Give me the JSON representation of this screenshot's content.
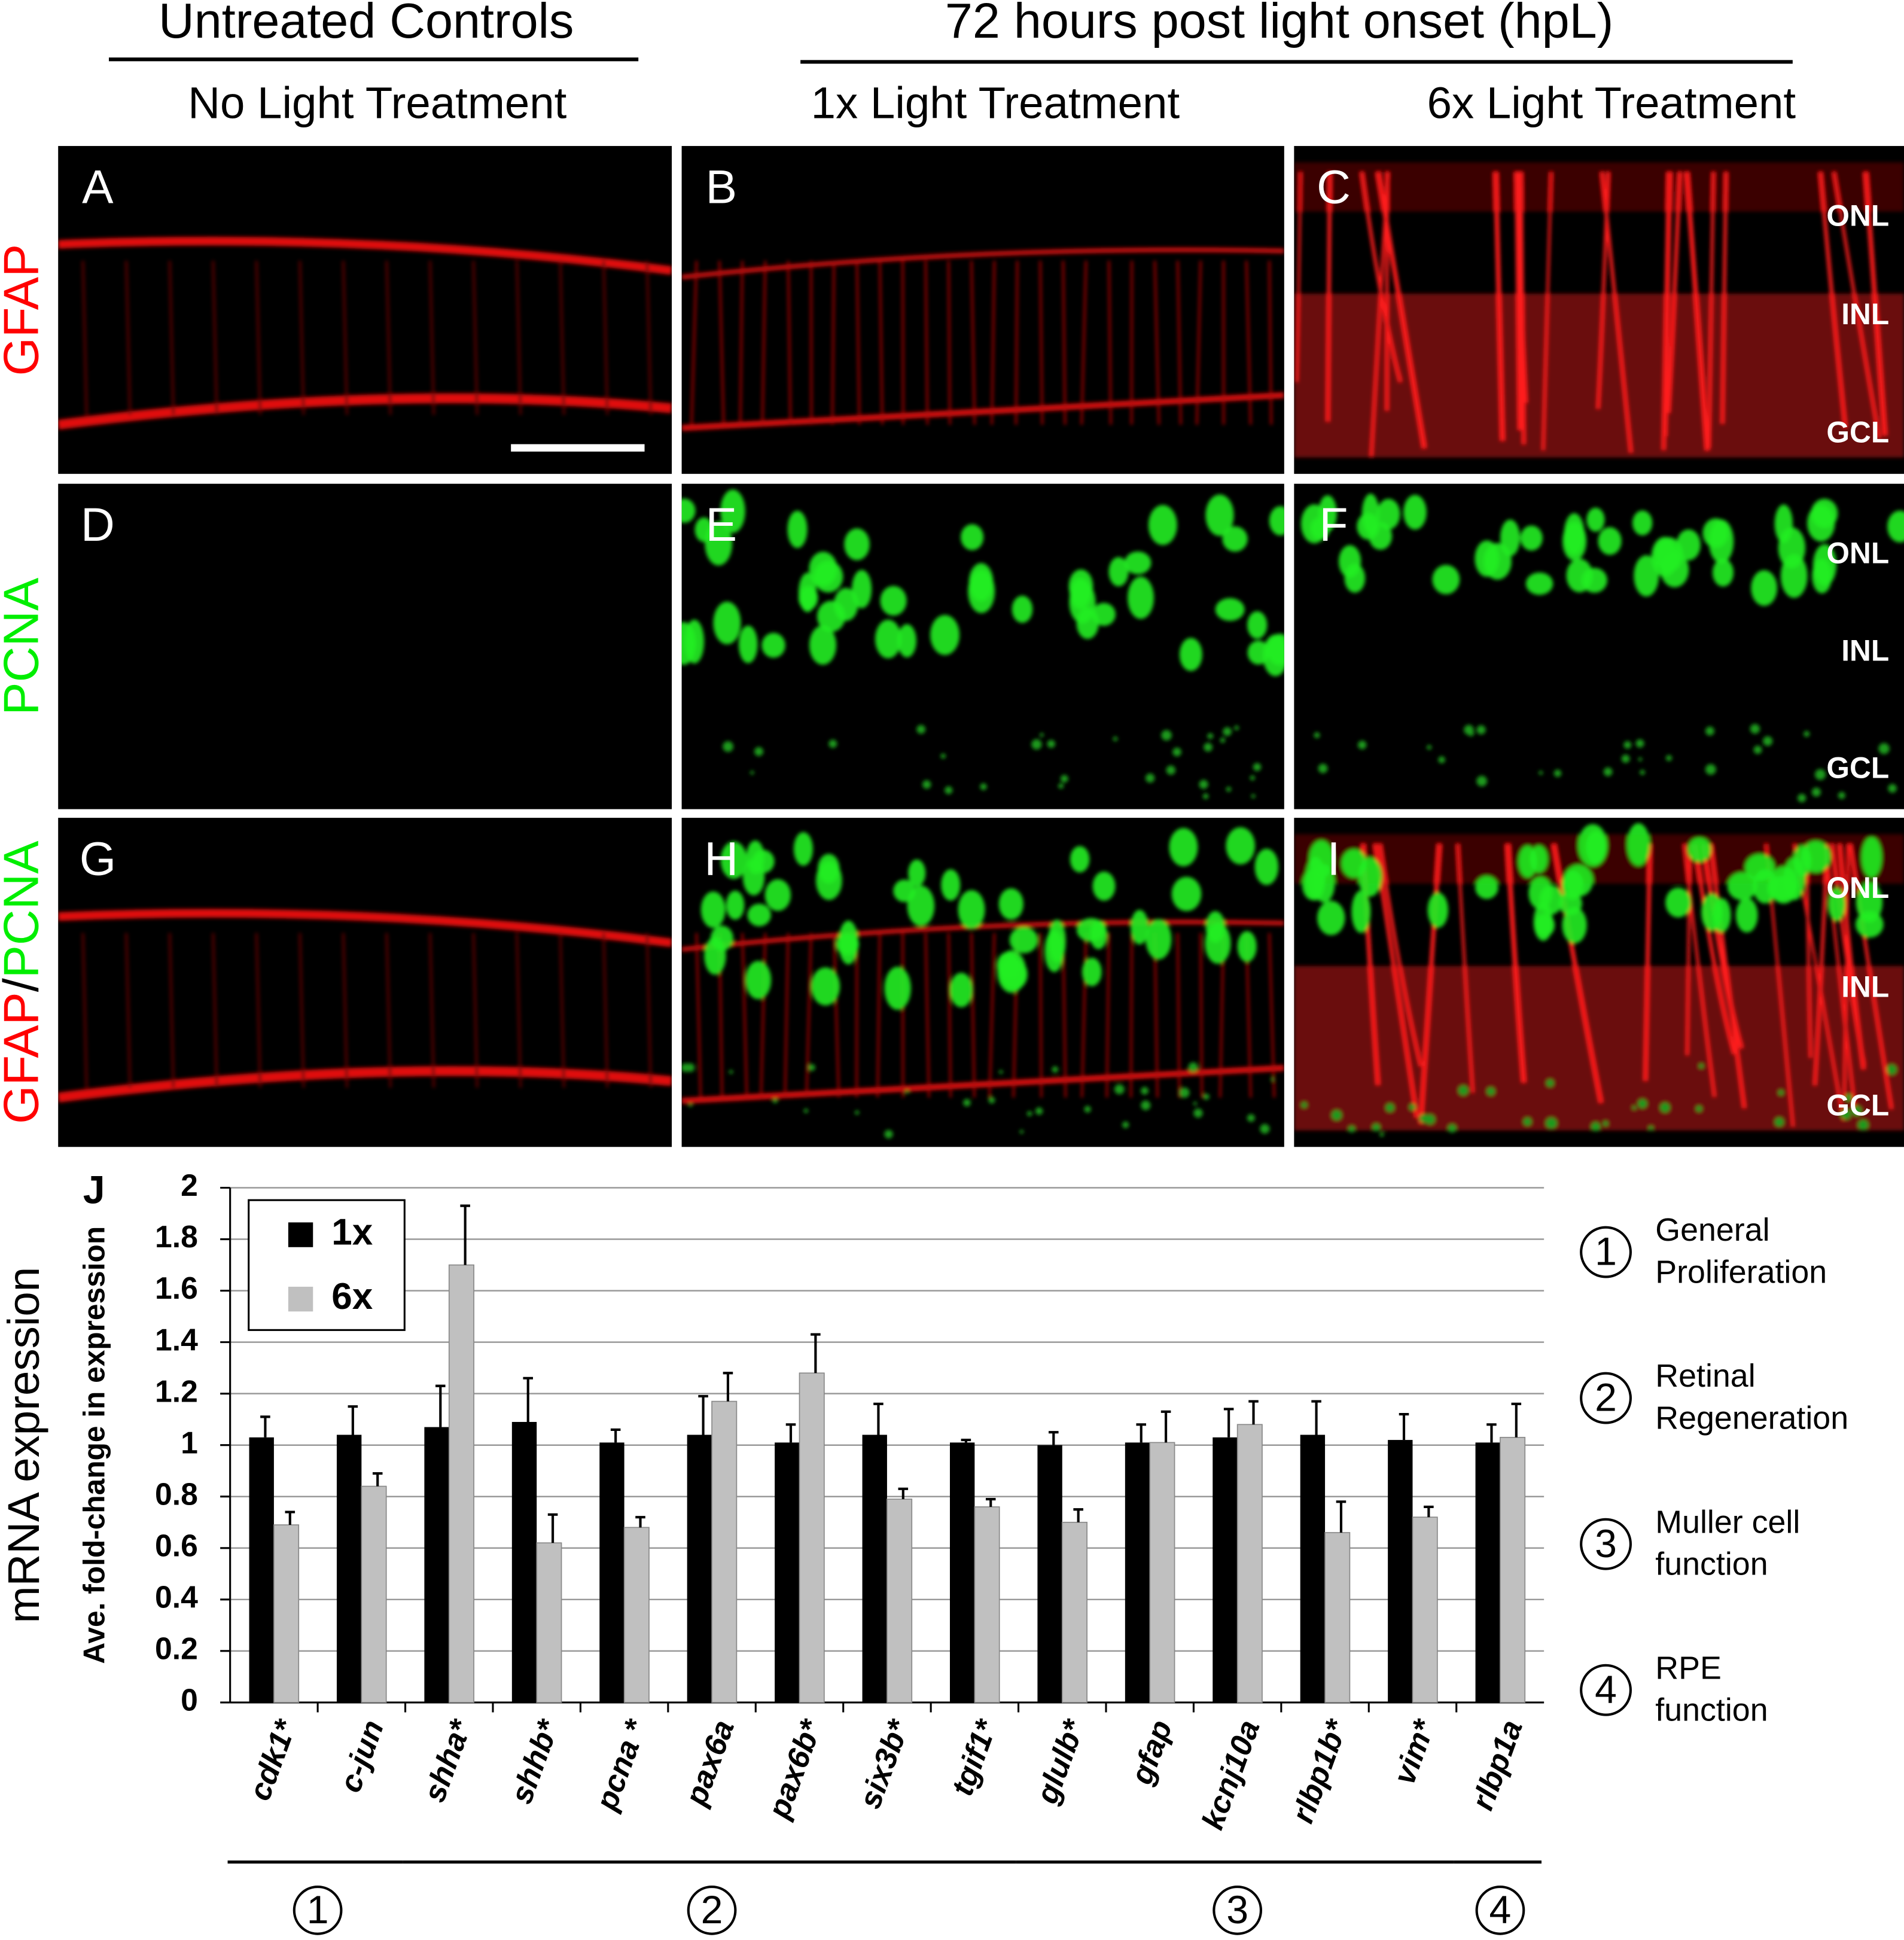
{
  "header": {
    "left_title": "Untreated Controls",
    "right_title": "72 hours post light onset (hpL)",
    "columns": [
      "No Light Treatment",
      "1x Light Treatment",
      "6x Light Treatment"
    ]
  },
  "rows": [
    {
      "label_parts": [
        "GFAP"
      ]
    },
    {
      "label_parts": [
        "PCNA"
      ]
    },
    {
      "label_parts": [
        "GFAP",
        "/",
        "PCNA"
      ]
    }
  ],
  "panels": [
    "A",
    "B",
    "C",
    "D",
    "E",
    "F",
    "G",
    "H",
    "I"
  ],
  "layers": [
    "ONL",
    "INL",
    "GCL"
  ],
  "chart_data": {
    "type": "bar",
    "panel_label": "J",
    "outer_label": "mRNA expression",
    "ylabel": "Ave. fold-change in expression",
    "categories": [
      "cdk1*",
      "c-jun",
      "shha*",
      "shhb*",
      "pcna *",
      "pax6a",
      "pax6b*",
      "six3b*",
      "tgif1*",
      "glulb*",
      "gfap",
      "kcnj10a",
      "rlbp1b*",
      "vim*",
      "rlbp1a"
    ],
    "series": [
      {
        "name": "1x",
        "color": "#000000",
        "values": [
          1.03,
          1.04,
          1.07,
          1.09,
          1.01,
          1.04,
          1.01,
          1.04,
          1.01,
          1.0,
          1.01,
          1.03,
          1.04,
          1.02,
          1.01
        ],
        "errors": [
          0.08,
          0.11,
          0.16,
          0.17,
          0.05,
          0.15,
          0.07,
          0.12,
          0.01,
          0.05,
          0.07,
          0.11,
          0.13,
          0.1,
          0.07
        ]
      },
      {
        "name": "6x",
        "color": "#c0c0c0",
        "values": [
          0.69,
          0.84,
          1.7,
          0.62,
          0.68,
          1.17,
          1.28,
          0.79,
          0.76,
          0.7,
          1.01,
          1.08,
          0.66,
          0.72,
          1.03
        ],
        "errors": [
          0.05,
          0.05,
          0.23,
          0.11,
          0.04,
          0.11,
          0.15,
          0.04,
          0.03,
          0.05,
          0.12,
          0.09,
          0.12,
          0.04,
          0.13
        ]
      }
    ],
    "ylim": [
      0,
      2
    ],
    "yticks": [
      0,
      0.2,
      0.4,
      0.6,
      0.8,
      1,
      1.2,
      1.4,
      1.6,
      1.8,
      2
    ],
    "grid": true,
    "groups": [
      {
        "label": "1",
        "first": 0,
        "last": 1,
        "description": [
          "General",
          "Proliferation"
        ]
      },
      {
        "label": "2",
        "first": 2,
        "last": 8,
        "description": [
          "Retinal",
          "Regeneration"
        ]
      },
      {
        "label": "3",
        "first": 9,
        "last": 13,
        "description": [
          "Muller cell",
          "function"
        ]
      },
      {
        "label": "4",
        "first": 14,
        "last": 14,
        "description": [
          "RPE",
          "function"
        ]
      }
    ]
  }
}
